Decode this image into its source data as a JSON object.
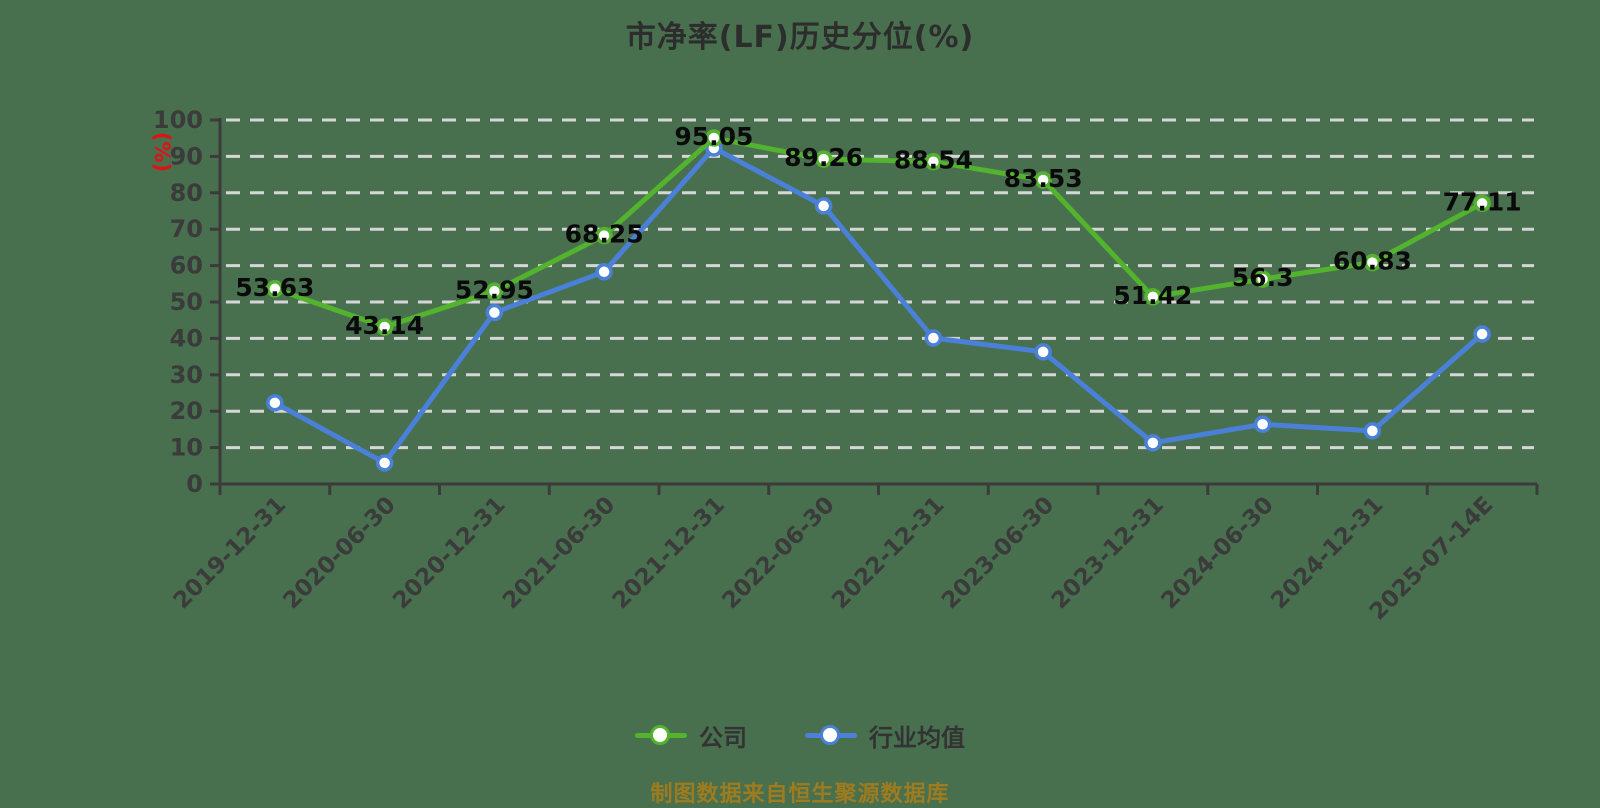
{
  "source_note": "制图数据来自恒生聚源数据库",
  "colors": {
    "background": "#48704f",
    "grid": "#d6d6d6",
    "axis": "#3b3b3b",
    "data_label": "#0a0a0a",
    "y_unit": "#e01212",
    "title": "#2d2d2d",
    "legend_text": "#333333",
    "source_note": "#9e7b1e"
  },
  "chart_data": {
    "type": "line",
    "title": "市净率(LF)历史分位(%)",
    "ylabel": "(%)",
    "xlabel": "",
    "ylim": [
      0,
      100
    ],
    "ytick_step": 10,
    "grid": "horizontal-dashed",
    "legend_position": "bottom",
    "categories": [
      "2019-12-31",
      "2020-06-30",
      "2020-12-31",
      "2021-06-30",
      "2021-12-31",
      "2022-06-30",
      "2022-12-31",
      "2023-06-30",
      "2023-12-31",
      "2024-06-30",
      "2024-12-31",
      "2025-07-14E"
    ],
    "series": [
      {
        "name": "公司",
        "color": "#53b32e",
        "labels_visible": true,
        "values": [
          53.63,
          43.14,
          52.95,
          68.25,
          95.05,
          89.26,
          88.54,
          83.53,
          51.42,
          56.3,
          60.83,
          77.11
        ]
      },
      {
        "name": "行业均值",
        "color": "#4b80d9",
        "labels_visible": false,
        "values": [
          22.3,
          5.8,
          47.1,
          58.3,
          92.3,
          76.4,
          40.1,
          36.3,
          11.3,
          16.4,
          14.6,
          41.2
        ]
      }
    ]
  }
}
